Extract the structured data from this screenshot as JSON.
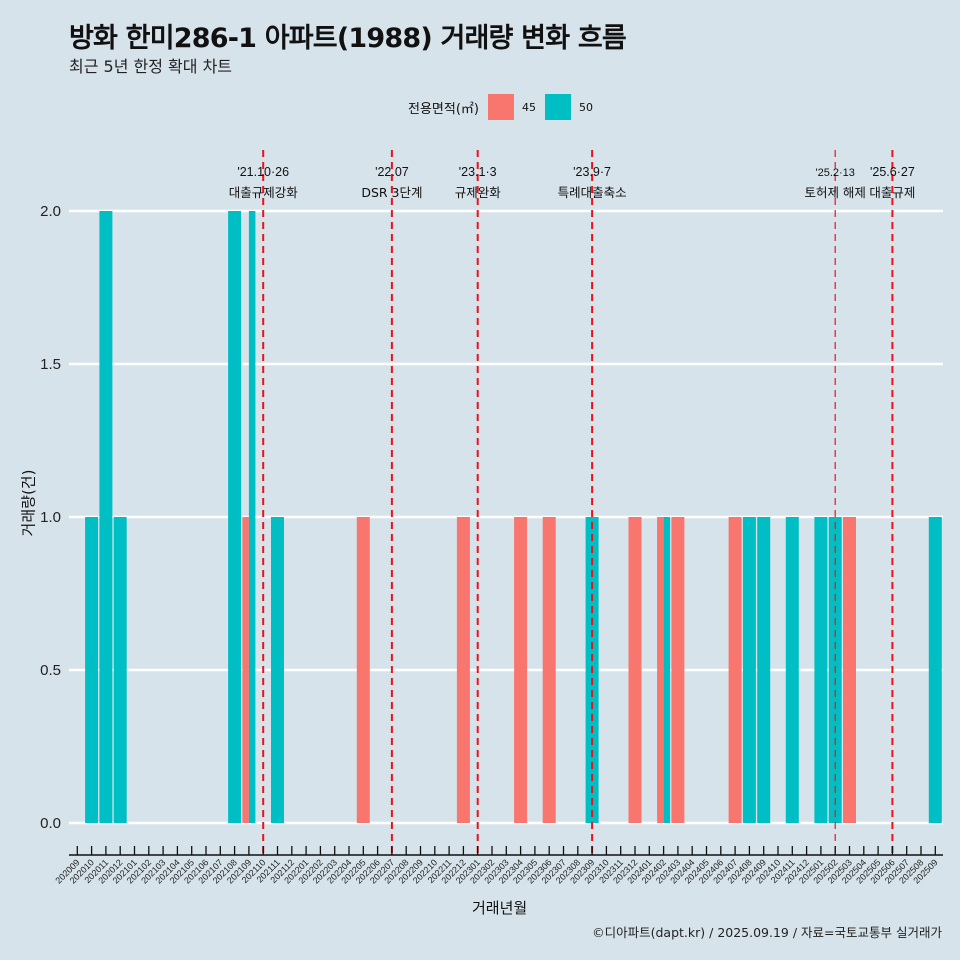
{
  "colors": {
    "background": "#d6e3ea",
    "area_45": "#f8766d",
    "area_50": "#00bfc4",
    "event_line": "#e8141c",
    "grid": "#ffffff"
  },
  "header": {
    "title": "방화 한미286-1 아파트(1988) 거래량 변화 흐름",
    "subtitle": "최근 5년 한정 확대 차트"
  },
  "footer": {
    "credit": "©디아파트(dapt.kr) / 2025.09.19 / 자료=국토교통부 실거래가"
  },
  "chart_data": {
    "type": "bar",
    "title": "방화 한미286-1 아파트(1988) 거래량 변화 흐름",
    "subtitle": "최근 5년 한정 확대 차트",
    "xlabel": "거래년월",
    "ylabel": "거래량(건)",
    "ylim": [
      0,
      2
    ],
    "yticks": [
      "0.0",
      "0.5",
      "1.0",
      "1.5",
      "2.0"
    ],
    "ytick_values": [
      0,
      0.5,
      1.0,
      1.5,
      2.0
    ],
    "grid": true,
    "legend": {
      "title": "전용면적(㎡)",
      "position": "top",
      "entries": [
        "45",
        "50"
      ]
    },
    "categories": [
      "202009",
      "202010",
      "202011",
      "202012",
      "202101",
      "202102",
      "202103",
      "202104",
      "202105",
      "202106",
      "202107",
      "202108",
      "202109",
      "202110",
      "202111",
      "202112",
      "202201",
      "202202",
      "202203",
      "202204",
      "202205",
      "202206",
      "202207",
      "202208",
      "202209",
      "202210",
      "202211",
      "202212",
      "202301",
      "202302",
      "202303",
      "202304",
      "202305",
      "202306",
      "202307",
      "202308",
      "202309",
      "202310",
      "202311",
      "202312",
      "202401",
      "202402",
      "202403",
      "202404",
      "202405",
      "202406",
      "202407",
      "202408",
      "202409",
      "202410",
      "202411",
      "202412",
      "202501",
      "202502",
      "202503",
      "202504",
      "202505",
      "202506",
      "202507",
      "202508",
      "202509"
    ],
    "series": [
      {
        "name": "45",
        "values": [
          0,
          0,
          0,
          0,
          0,
          0,
          0,
          0,
          0,
          0,
          0,
          0,
          1,
          0,
          0,
          0,
          0,
          0,
          0,
          0,
          1,
          0,
          0,
          0,
          0,
          0,
          0,
          1,
          0,
          0,
          0,
          1,
          0,
          1,
          0,
          0,
          0,
          0,
          0,
          1,
          0,
          1,
          1,
          0,
          0,
          0,
          1,
          0,
          0,
          0,
          0,
          0,
          0,
          0,
          1,
          0,
          0,
          0,
          0,
          0,
          0
        ]
      },
      {
        "name": "50",
        "values": [
          0,
          1,
          2,
          1,
          0,
          0,
          0,
          0,
          0,
          0,
          0,
          2,
          2,
          0,
          1,
          0,
          0,
          0,
          0,
          0,
          0,
          0,
          0,
          0,
          0,
          0,
          0,
          0,
          0,
          0,
          0,
          0,
          0,
          0,
          0,
          0,
          1,
          0,
          0,
          0,
          0,
          1,
          0,
          0,
          0,
          0,
          0,
          1,
          1,
          0,
          1,
          0,
          1,
          1,
          0,
          0,
          0,
          0,
          0,
          0,
          1
        ]
      }
    ],
    "events": [
      {
        "category": "202110",
        "date": "'21.10·26",
        "label": "대출규제강화",
        "style": "major"
      },
      {
        "category": "202207",
        "date": "'22.07",
        "label": "DSR 3단계",
        "style": "major"
      },
      {
        "category": "202301",
        "date": "'23.1·3",
        "label": "규제완화",
        "style": "major"
      },
      {
        "category": "202309",
        "date": "'23.9·7",
        "label": "특례대출축소",
        "style": "major"
      },
      {
        "category": "202502",
        "date": "'25.2·13",
        "label": "토허제 해제",
        "style": "minor"
      },
      {
        "category": "202506",
        "date": "'25.6·27",
        "label": "대출규제",
        "style": "major"
      }
    ]
  }
}
